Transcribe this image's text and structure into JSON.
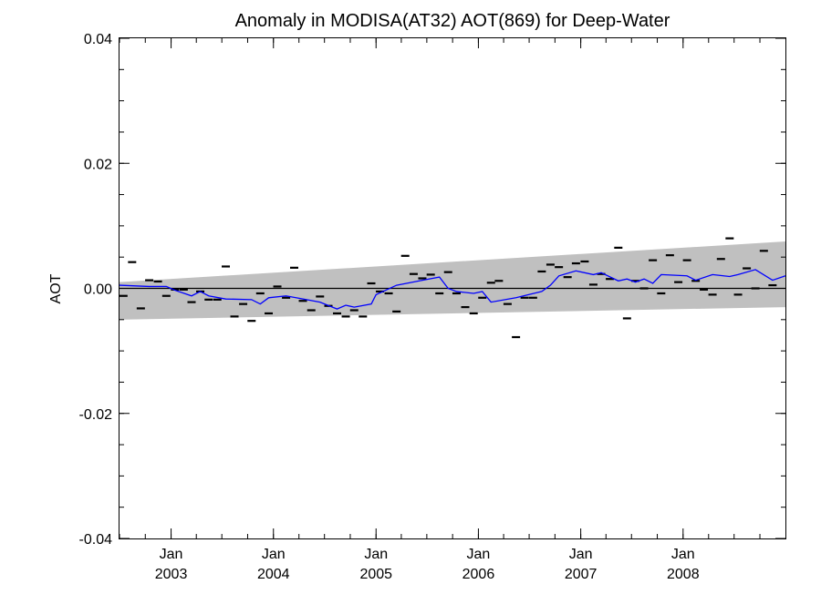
{
  "chart_data": {
    "type": "line",
    "title": "Anomaly in MODISA(AT32) AOT(869) for Deep-Water",
    "xlabel": "",
    "ylabel": "AOT",
    "xlim": [
      "2002-07-01",
      "2008-12-31"
    ],
    "ylim": [
      -0.04,
      0.04
    ],
    "grid": false,
    "y_ticks": [
      {
        "value": 0.04,
        "label": "0.04"
      },
      {
        "value": 0.02,
        "label": "0.02"
      },
      {
        "value": 0.0,
        "label": "0.00"
      },
      {
        "value": -0.02,
        "label": "-0.02"
      },
      {
        "value": -0.04,
        "label": "-0.04"
      }
    ],
    "x_ticks": [
      {
        "date": "2003-01-01",
        "month": "Jan",
        "year": "2003"
      },
      {
        "date": "2004-01-01",
        "month": "Jan",
        "year": "2004"
      },
      {
        "date": "2005-01-01",
        "month": "Jan",
        "year": "2005"
      },
      {
        "date": "2006-01-01",
        "month": "Jan",
        "year": "2006"
      },
      {
        "date": "2007-01-01",
        "month": "Jan",
        "year": "2007"
      },
      {
        "date": "2008-01-01",
        "month": "Jan",
        "year": "2008"
      }
    ],
    "uncertainty_band": {
      "color": "#c0c0c0",
      "start_date": "2002-07-01",
      "end_date": "2008-12-31",
      "upper": [
        0.001,
        0.0075
      ],
      "lower": [
        -0.005,
        -0.003
      ]
    },
    "zero_line": {
      "value": 0.0,
      "color": "#000000"
    },
    "series": [
      {
        "kind": "monthly_markers",
        "color": "#000000",
        "points": [
          {
            "date": "2002-07-15",
            "y": -0.0012
          },
          {
            "date": "2002-08-15",
            "y": 0.0042
          },
          {
            "date": "2002-09-15",
            "y": -0.0032
          },
          {
            "date": "2002-10-15",
            "y": 0.0013
          },
          {
            "date": "2002-11-15",
            "y": 0.0011
          },
          {
            "date": "2002-12-15",
            "y": -0.0012
          },
          {
            "date": "2003-01-15",
            "y": -0.0002
          },
          {
            "date": "2003-02-15",
            "y": -0.0002
          },
          {
            "date": "2003-03-15",
            "y": -0.0022
          },
          {
            "date": "2003-04-15",
            "y": -0.0005
          },
          {
            "date": "2003-05-15",
            "y": -0.0018
          },
          {
            "date": "2003-06-15",
            "y": -0.0018
          },
          {
            "date": "2003-07-15",
            "y": 0.0035
          },
          {
            "date": "2003-08-15",
            "y": -0.0045
          },
          {
            "date": "2003-09-15",
            "y": -0.0025
          },
          {
            "date": "2003-10-15",
            "y": -0.0052
          },
          {
            "date": "2003-11-15",
            "y": -0.0008
          },
          {
            "date": "2003-12-15",
            "y": -0.004
          },
          {
            "date": "2004-01-15",
            "y": 0.0003
          },
          {
            "date": "2004-02-15",
            "y": -0.0015
          },
          {
            "date": "2004-03-15",
            "y": 0.0033
          },
          {
            "date": "2004-04-15",
            "y": -0.002
          },
          {
            "date": "2004-05-15",
            "y": -0.0035
          },
          {
            "date": "2004-06-15",
            "y": -0.0013
          },
          {
            "date": "2004-07-15",
            "y": -0.0028
          },
          {
            "date": "2004-08-15",
            "y": -0.004
          },
          {
            "date": "2004-09-15",
            "y": -0.0045
          },
          {
            "date": "2004-10-15",
            "y": -0.0035
          },
          {
            "date": "2004-11-15",
            "y": -0.0045
          },
          {
            "date": "2004-12-15",
            "y": 0.0008
          },
          {
            "date": "2005-01-15",
            "y": -0.0005
          },
          {
            "date": "2005-02-15",
            "y": -0.0008
          },
          {
            "date": "2005-03-15",
            "y": -0.0037
          },
          {
            "date": "2005-04-15",
            "y": 0.0052
          },
          {
            "date": "2005-05-15",
            "y": 0.0023
          },
          {
            "date": "2005-06-15",
            "y": 0.0016
          },
          {
            "date": "2005-07-15",
            "y": 0.0022
          },
          {
            "date": "2005-08-15",
            "y": -0.0008
          },
          {
            "date": "2005-09-15",
            "y": 0.0026
          },
          {
            "date": "2005-10-15",
            "y": -0.0008
          },
          {
            "date": "2005-11-15",
            "y": -0.003
          },
          {
            "date": "2005-12-15",
            "y": -0.004
          },
          {
            "date": "2006-01-15",
            "y": -0.0015
          },
          {
            "date": "2006-02-15",
            "y": 0.0009
          },
          {
            "date": "2006-03-15",
            "y": 0.0012
          },
          {
            "date": "2006-04-15",
            "y": -0.0025
          },
          {
            "date": "2006-05-15",
            "y": -0.0078
          },
          {
            "date": "2006-06-15",
            "y": -0.0015
          },
          {
            "date": "2006-07-15",
            "y": -0.0015
          },
          {
            "date": "2006-08-15",
            "y": 0.0027
          },
          {
            "date": "2006-09-15",
            "y": 0.0038
          },
          {
            "date": "2006-10-15",
            "y": 0.0034
          },
          {
            "date": "2006-11-15",
            "y": 0.0018
          },
          {
            "date": "2006-12-15",
            "y": 0.004
          },
          {
            "date": "2007-01-15",
            "y": 0.0043
          },
          {
            "date": "2007-02-15",
            "y": 0.0006
          },
          {
            "date": "2007-03-15",
            "y": 0.0023
          },
          {
            "date": "2007-04-15",
            "y": 0.0015
          },
          {
            "date": "2007-05-15",
            "y": 0.0065
          },
          {
            "date": "2007-06-15",
            "y": -0.0048
          },
          {
            "date": "2007-07-15",
            "y": 0.0012
          },
          {
            "date": "2007-08-15",
            "y": 0.0
          },
          {
            "date": "2007-09-15",
            "y": 0.0045
          },
          {
            "date": "2007-10-15",
            "y": -0.0008
          },
          {
            "date": "2007-11-15",
            "y": 0.0053
          },
          {
            "date": "2007-12-15",
            "y": 0.001
          },
          {
            "date": "2008-01-15",
            "y": 0.0045
          },
          {
            "date": "2008-02-15",
            "y": 0.0012
          },
          {
            "date": "2008-03-15",
            "y": -0.0002
          },
          {
            "date": "2008-04-15",
            "y": -0.001
          },
          {
            "date": "2008-05-15",
            "y": 0.0047
          },
          {
            "date": "2008-06-15",
            "y": 0.008
          },
          {
            "date": "2008-07-15",
            "y": -0.001
          },
          {
            "date": "2008-08-15",
            "y": 0.0032
          },
          {
            "date": "2008-09-15",
            "y": 0.0
          },
          {
            "date": "2008-10-15",
            "y": 0.006
          },
          {
            "date": "2008-11-15",
            "y": 0.0005
          }
        ]
      },
      {
        "kind": "running_mean",
        "color": "#0000ff",
        "points": [
          {
            "date": "2002-07-01",
            "y": 0.0005
          },
          {
            "date": "2002-10-15",
            "y": 0.0003
          },
          {
            "date": "2002-12-15",
            "y": 0.0003
          },
          {
            "date": "2003-01-15",
            "y": -0.0003
          },
          {
            "date": "2003-03-15",
            "y": -0.0012
          },
          {
            "date": "2003-04-15",
            "y": -0.0005
          },
          {
            "date": "2003-05-15",
            "y": -0.0012
          },
          {
            "date": "2003-07-15",
            "y": -0.0017
          },
          {
            "date": "2003-10-15",
            "y": -0.0018
          },
          {
            "date": "2003-11-15",
            "y": -0.0025
          },
          {
            "date": "2003-12-15",
            "y": -0.0015
          },
          {
            "date": "2004-02-15",
            "y": -0.0012
          },
          {
            "date": "2004-04-15",
            "y": -0.0017
          },
          {
            "date": "2004-06-15",
            "y": -0.0022
          },
          {
            "date": "2004-08-15",
            "y": -0.0033
          },
          {
            "date": "2004-09-15",
            "y": -0.0027
          },
          {
            "date": "2004-10-15",
            "y": -0.003
          },
          {
            "date": "2004-12-15",
            "y": -0.0025
          },
          {
            "date": "2005-01-01",
            "y": -0.001
          },
          {
            "date": "2005-03-15",
            "y": 0.0005
          },
          {
            "date": "2005-06-15",
            "y": 0.0013
          },
          {
            "date": "2005-08-15",
            "y": 0.0018
          },
          {
            "date": "2005-09-15",
            "y": 0.0
          },
          {
            "date": "2005-10-15",
            "y": -0.0005
          },
          {
            "date": "2005-12-15",
            "y": -0.0008
          },
          {
            "date": "2006-01-15",
            "y": -0.0005
          },
          {
            "date": "2006-02-15",
            "y": -0.0022
          },
          {
            "date": "2006-05-15",
            "y": -0.0015
          },
          {
            "date": "2006-08-15",
            "y": -0.0005
          },
          {
            "date": "2006-09-15",
            "y": 0.0005
          },
          {
            "date": "2006-10-15",
            "y": 0.002
          },
          {
            "date": "2006-12-15",
            "y": 0.0028
          },
          {
            "date": "2007-02-15",
            "y": 0.0022
          },
          {
            "date": "2007-03-15",
            "y": 0.0025
          },
          {
            "date": "2007-05-15",
            "y": 0.0012
          },
          {
            "date": "2007-06-15",
            "y": 0.0015
          },
          {
            "date": "2007-07-15",
            "y": 0.001
          },
          {
            "date": "2007-08-15",
            "y": 0.0015
          },
          {
            "date": "2007-09-15",
            "y": 0.0008
          },
          {
            "date": "2007-10-15",
            "y": 0.0022
          },
          {
            "date": "2008-01-15",
            "y": 0.002
          },
          {
            "date": "2008-02-15",
            "y": 0.0013
          },
          {
            "date": "2008-04-15",
            "y": 0.0022
          },
          {
            "date": "2008-06-15",
            "y": 0.0019
          },
          {
            "date": "2008-07-15",
            "y": 0.0022
          },
          {
            "date": "2008-09-15",
            "y": 0.003
          },
          {
            "date": "2008-11-15",
            "y": 0.0013
          },
          {
            "date": "2008-12-31",
            "y": 0.002
          }
        ]
      }
    ]
  }
}
